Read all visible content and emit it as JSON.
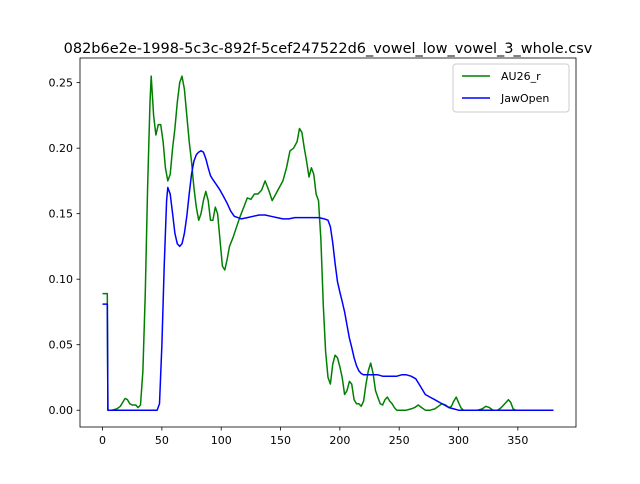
{
  "chart_data": {
    "type": "line",
    "title": "082b6e2e-1998-5c3c-892f-5cef247522d6_vowel_low_vowel_3_whole.csv",
    "xlabel": "",
    "ylabel": "",
    "xlim": [
      -19,
      399
    ],
    "ylim": [
      -0.0128,
      0.2688
    ],
    "xticks": [
      0,
      50,
      100,
      150,
      200,
      250,
      300,
      350
    ],
    "yticks": [
      0.0,
      0.05,
      0.1,
      0.15,
      0.2,
      0.25
    ],
    "ytick_labels": [
      "0.00",
      "0.05",
      "0.10",
      "0.15",
      "0.20",
      "0.25"
    ],
    "grid": false,
    "legend_position": "top-right",
    "series": [
      {
        "name": "AU26_r",
        "color": "#008000",
        "points": [
          [
            0,
            0.089
          ],
          [
            4,
            0.089
          ],
          [
            4.5,
            0.0
          ],
          [
            8,
            0.0
          ],
          [
            12,
            0.001
          ],
          [
            15,
            0.003
          ],
          [
            17,
            0.006
          ],
          [
            19,
            0.009
          ],
          [
            21,
            0.008
          ],
          [
            23,
            0.005
          ],
          [
            25,
            0.004
          ],
          [
            28,
            0.004
          ],
          [
            30,
            0.002
          ],
          [
            32,
            0.004
          ],
          [
            34,
            0.03
          ],
          [
            36,
            0.09
          ],
          [
            38,
            0.17
          ],
          [
            40,
            0.235
          ],
          [
            41,
            0.255
          ],
          [
            43,
            0.225
          ],
          [
            45,
            0.21
          ],
          [
            47,
            0.218
          ],
          [
            49,
            0.218
          ],
          [
            51,
            0.205
          ],
          [
            53,
            0.185
          ],
          [
            55,
            0.175
          ],
          [
            57,
            0.18
          ],
          [
            59,
            0.2
          ],
          [
            61,
            0.215
          ],
          [
            63,
            0.235
          ],
          [
            65,
            0.25
          ],
          [
            67,
            0.255
          ],
          [
            69,
            0.245
          ],
          [
            71,
            0.225
          ],
          [
            73,
            0.205
          ],
          [
            75,
            0.19
          ],
          [
            77,
            0.17
          ],
          [
            79,
            0.155
          ],
          [
            81,
            0.145
          ],
          [
            83,
            0.15
          ],
          [
            85,
            0.16
          ],
          [
            87,
            0.167
          ],
          [
            89,
            0.16
          ],
          [
            91,
            0.145
          ],
          [
            93,
            0.145
          ],
          [
            95,
            0.155
          ],
          [
            97,
            0.15
          ],
          [
            99,
            0.13
          ],
          [
            101,
            0.11
          ],
          [
            103,
            0.107
          ],
          [
            105,
            0.115
          ],
          [
            107,
            0.125
          ],
          [
            110,
            0.132
          ],
          [
            113,
            0.14
          ],
          [
            116,
            0.148
          ],
          [
            119,
            0.155
          ],
          [
            122,
            0.162
          ],
          [
            125,
            0.161
          ],
          [
            128,
            0.165
          ],
          [
            131,
            0.165
          ],
          [
            134,
            0.168
          ],
          [
            137,
            0.175
          ],
          [
            140,
            0.168
          ],
          [
            143,
            0.16
          ],
          [
            146,
            0.165
          ],
          [
            149,
            0.17
          ],
          [
            152,
            0.175
          ],
          [
            155,
            0.185
          ],
          [
            158,
            0.198
          ],
          [
            161,
            0.2
          ],
          [
            164,
            0.205
          ],
          [
            166,
            0.215
          ],
          [
            168,
            0.212
          ],
          [
            170,
            0.2
          ],
          [
            172,
            0.19
          ],
          [
            174,
            0.178
          ],
          [
            176,
            0.185
          ],
          [
            178,
            0.18
          ],
          [
            180,
            0.165
          ],
          [
            182,
            0.16
          ],
          [
            184,
            0.13
          ],
          [
            186,
            0.08
          ],
          [
            188,
            0.045
          ],
          [
            190,
            0.025
          ],
          [
            192,
            0.02
          ],
          [
            194,
            0.035
          ],
          [
            196,
            0.042
          ],
          [
            198,
            0.04
          ],
          [
            200,
            0.033
          ],
          [
            202,
            0.025
          ],
          [
            204,
            0.012
          ],
          [
            206,
            0.015
          ],
          [
            208,
            0.022
          ],
          [
            210,
            0.02
          ],
          [
            212,
            0.008
          ],
          [
            214,
            0.005
          ],
          [
            216,
            0.005
          ],
          [
            218,
            0.003
          ],
          [
            220,
            0.007
          ],
          [
            222,
            0.02
          ],
          [
            224,
            0.03
          ],
          [
            226,
            0.036
          ],
          [
            228,
            0.028
          ],
          [
            230,
            0.015
          ],
          [
            232,
            0.01
          ],
          [
            234,
            0.005
          ],
          [
            236,
            0.004
          ],
          [
            238,
            0.008
          ],
          [
            240,
            0.01
          ],
          [
            242,
            0.007
          ],
          [
            244,
            0.005
          ],
          [
            246,
            0.002
          ],
          [
            248,
            0.0
          ],
          [
            252,
            0.0
          ],
          [
            256,
            0.0
          ],
          [
            260,
            0.001
          ],
          [
            263,
            0.002
          ],
          [
            266,
            0.004
          ],
          [
            269,
            0.002
          ],
          [
            272,
            0.0
          ],
          [
            276,
            0.0
          ],
          [
            280,
            0.001
          ],
          [
            283,
            0.003
          ],
          [
            286,
            0.005
          ],
          [
            289,
            0.004
          ],
          [
            292,
            0.002
          ],
          [
            294,
            0.003
          ],
          [
            296,
            0.007
          ],
          [
            298,
            0.01
          ],
          [
            300,
            0.006
          ],
          [
            302,
            0.002
          ],
          [
            304,
            0.0
          ],
          [
            310,
            0.0
          ],
          [
            316,
            0.0
          ],
          [
            320,
            0.001
          ],
          [
            323,
            0.003
          ],
          [
            326,
            0.002
          ],
          [
            329,
            0.0
          ],
          [
            333,
            0.0
          ],
          [
            336,
            0.002
          ],
          [
            339,
            0.005
          ],
          [
            342,
            0.008
          ],
          [
            344,
            0.006
          ],
          [
            346,
            0.001
          ],
          [
            348,
            0.0
          ],
          [
            355,
            0.0
          ],
          [
            362,
            0.0
          ],
          [
            370,
            0.0
          ],
          [
            380,
            0.0
          ]
        ]
      },
      {
        "name": "JawOpen",
        "color": "#0000ff",
        "points": [
          [
            0,
            0.081
          ],
          [
            4,
            0.081
          ],
          [
            4.5,
            0.0
          ],
          [
            10,
            0.0
          ],
          [
            20,
            0.0
          ],
          [
            30,
            0.0
          ],
          [
            40,
            0.0
          ],
          [
            46,
            0.0
          ],
          [
            48,
            0.005
          ],
          [
            50,
            0.05
          ],
          [
            52,
            0.11
          ],
          [
            54,
            0.16
          ],
          [
            55,
            0.17
          ],
          [
            57,
            0.165
          ],
          [
            59,
            0.15
          ],
          [
            61,
            0.135
          ],
          [
            63,
            0.127
          ],
          [
            65,
            0.125
          ],
          [
            67,
            0.127
          ],
          [
            69,
            0.135
          ],
          [
            71,
            0.148
          ],
          [
            73,
            0.165
          ],
          [
            75,
            0.18
          ],
          [
            77,
            0.19
          ],
          [
            79,
            0.195
          ],
          [
            81,
            0.197
          ],
          [
            83,
            0.198
          ],
          [
            85,
            0.197
          ],
          [
            87,
            0.192
          ],
          [
            89,
            0.185
          ],
          [
            91,
            0.179
          ],
          [
            93,
            0.176
          ],
          [
            96,
            0.172
          ],
          [
            99,
            0.168
          ],
          [
            102,
            0.163
          ],
          [
            105,
            0.158
          ],
          [
            108,
            0.152
          ],
          [
            111,
            0.148
          ],
          [
            114,
            0.147
          ],
          [
            117,
            0.146
          ],
          [
            122,
            0.147
          ],
          [
            127,
            0.148
          ],
          [
            132,
            0.149
          ],
          [
            137,
            0.149
          ],
          [
            142,
            0.148
          ],
          [
            147,
            0.147
          ],
          [
            152,
            0.146
          ],
          [
            157,
            0.146
          ],
          [
            162,
            0.147
          ],
          [
            167,
            0.147
          ],
          [
            172,
            0.147
          ],
          [
            177,
            0.147
          ],
          [
            182,
            0.147
          ],
          [
            187,
            0.146
          ],
          [
            190,
            0.145
          ],
          [
            192,
            0.14
          ],
          [
            194,
            0.128
          ],
          [
            196,
            0.112
          ],
          [
            198,
            0.098
          ],
          [
            200,
            0.09
          ],
          [
            202,
            0.083
          ],
          [
            204,
            0.075
          ],
          [
            206,
            0.065
          ],
          [
            208,
            0.055
          ],
          [
            210,
            0.048
          ],
          [
            212,
            0.04
          ],
          [
            214,
            0.034
          ],
          [
            216,
            0.03
          ],
          [
            218,
            0.028
          ],
          [
            220,
            0.027
          ],
          [
            224,
            0.027
          ],
          [
            228,
            0.027
          ],
          [
            232,
            0.027
          ],
          [
            236,
            0.026
          ],
          [
            240,
            0.026
          ],
          [
            244,
            0.026
          ],
          [
            248,
            0.026
          ],
          [
            252,
            0.027
          ],
          [
            256,
            0.027
          ],
          [
            260,
            0.026
          ],
          [
            264,
            0.024
          ],
          [
            268,
            0.018
          ],
          [
            272,
            0.012
          ],
          [
            276,
            0.01
          ],
          [
            280,
            0.008
          ],
          [
            284,
            0.006
          ],
          [
            288,
            0.004
          ],
          [
            292,
            0.002
          ],
          [
            296,
            0.001
          ],
          [
            300,
            0.0
          ],
          [
            310,
            0.0
          ],
          [
            320,
            0.0
          ],
          [
            340,
            0.0
          ],
          [
            360,
            0.0
          ],
          [
            380,
            0.0
          ]
        ]
      }
    ]
  }
}
